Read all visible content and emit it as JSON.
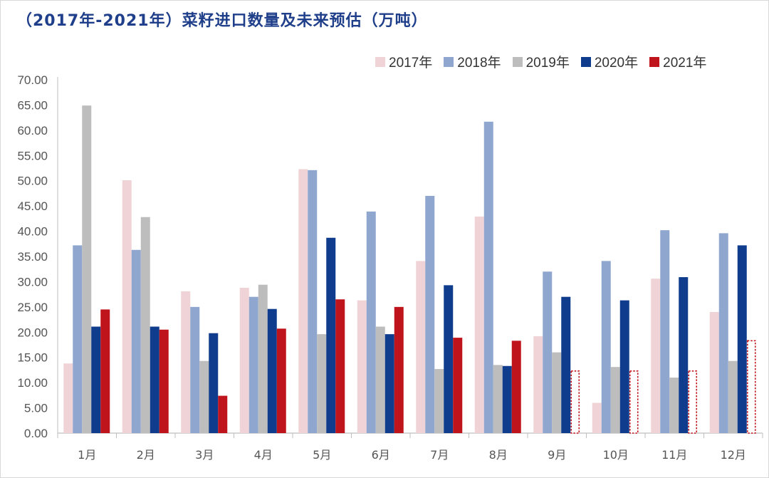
{
  "title": "（2017年-2021年）菜籽进口数量及未来预估（万吨）",
  "colors": {
    "title": "#1f3f8a",
    "series": [
      "#f0d3d6",
      "#8fa7cf",
      "#bdbdbd",
      "#0f3c8c",
      "#c0141c"
    ]
  },
  "chart_data": {
    "type": "bar",
    "title": "（2017年-2021年）菜籽进口数量及未来预估（万吨）",
    "xlabel": "",
    "ylabel": "",
    "categories": [
      "1月",
      "2月",
      "3月",
      "4月",
      "5月",
      "6月",
      "7月",
      "8月",
      "9月",
      "10月",
      "11月",
      "12月"
    ],
    "yticks": [
      "0.00",
      "5.00",
      "10.00",
      "15.00",
      "20.00",
      "25.00",
      "30.00",
      "35.00",
      "40.00",
      "45.00",
      "50.00",
      "55.00",
      "60.00",
      "65.00",
      "70.00"
    ],
    "ylim": [
      0,
      70
    ],
    "legend_position": "top-right",
    "series": [
      {
        "name": "2017年",
        "values": [
          13.8,
          50.1,
          28.1,
          28.8,
          52.3,
          26.3,
          34.1,
          42.9,
          19.2,
          6.0,
          30.6,
          24.0
        ]
      },
      {
        "name": "2018年",
        "values": [
          37.2,
          36.3,
          25.0,
          27.0,
          52.1,
          43.9,
          47.0,
          61.7,
          32.0,
          34.1,
          40.2,
          39.6
        ]
      },
      {
        "name": "2019年",
        "values": [
          64.9,
          42.8,
          14.3,
          29.4,
          19.6,
          21.1,
          12.7,
          13.5,
          16.0,
          13.1,
          11.0,
          14.3
        ]
      },
      {
        "name": "2020年",
        "values": [
          21.1,
          21.1,
          19.8,
          24.6,
          38.7,
          19.6,
          29.3,
          13.3,
          27.0,
          26.3,
          30.9,
          37.2
        ]
      },
      {
        "name": "2021年",
        "values": [
          24.5,
          20.5,
          7.4,
          20.7,
          26.5,
          25.0,
          18.9,
          18.3,
          12.3,
          12.3,
          12.3,
          18.3
        ],
        "estimated_from_index": 8
      }
    ]
  }
}
